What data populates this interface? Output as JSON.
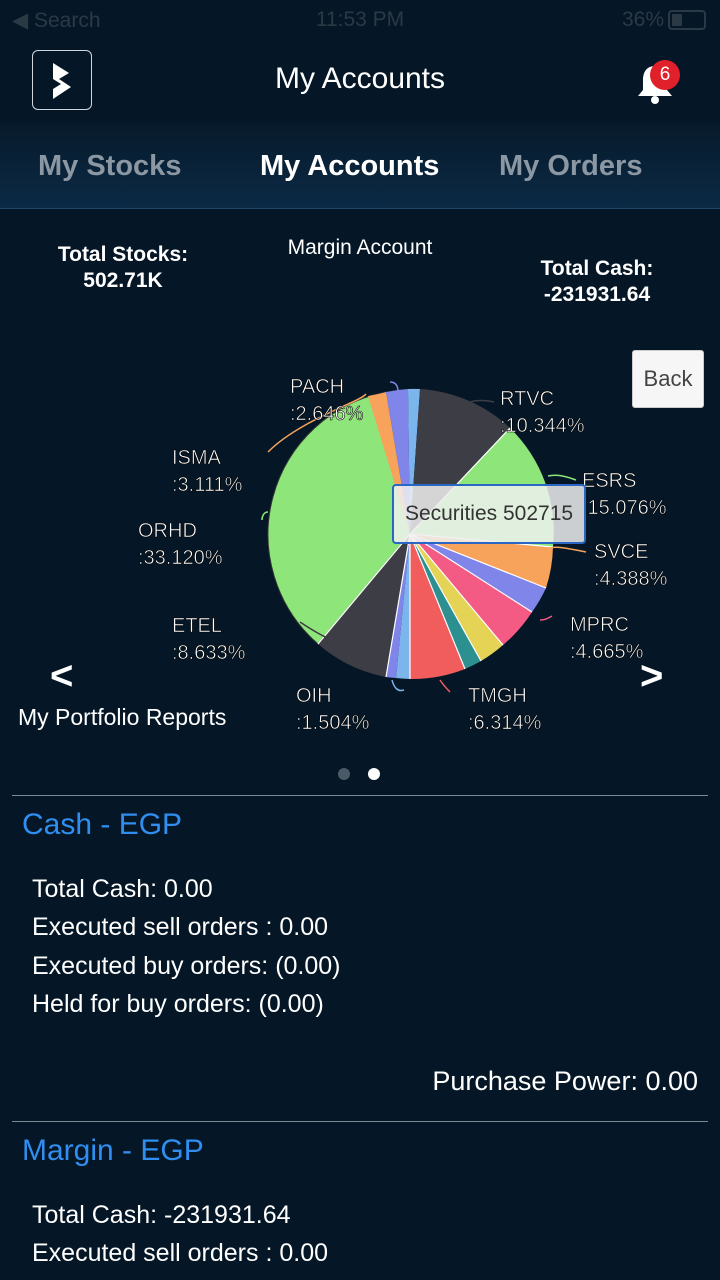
{
  "status_bar": {
    "back_label": "◀ Search",
    "time": "11:53 PM",
    "battery": "36%"
  },
  "header": {
    "title": "My Accounts",
    "notification_count": "6"
  },
  "tabs": [
    {
      "label": "My Stocks",
      "active": false
    },
    {
      "label": "My Accounts",
      "active": true
    },
    {
      "label": "My Orders",
      "active": false
    }
  ],
  "summary": {
    "total_stocks_label": "Total Stocks:",
    "total_stocks_value": "502.71K",
    "account_type": "Margin Account",
    "total_cash_label": "Total Cash:",
    "total_cash_value": "-231931.64"
  },
  "back_button": "Back",
  "tooltip": "Securities 502715",
  "prev_arrow": "<",
  "next_arrow": ">",
  "portfolio_reports": "My Portfolio Reports",
  "pie_labels": [
    {
      "name": "PACH",
      "pct": ":2.646%"
    },
    {
      "name": "RTVC",
      "pct": ":10.344%"
    },
    {
      "name": "ESRS",
      "pct": ":15.076%"
    },
    {
      "name": "SVCE",
      "pct": ":4.388%"
    },
    {
      "name": "MPRC",
      "pct": ":4.665%"
    },
    {
      "name": "TMGH",
      "pct": ":6.314%"
    },
    {
      "name": "OIH",
      "pct": ":1.504%"
    },
    {
      "name": "ETEL",
      "pct": ":8.633%"
    },
    {
      "name": "ORHD",
      "pct": ":33.120%"
    },
    {
      "name": "ISMA",
      "pct": ":3.111%"
    }
  ],
  "pie_colors": {
    "green": "#8ee67a",
    "dark": "#3d3d45",
    "orange": "#f7a35c",
    "blue": "#8085e9",
    "light_blue": "#7cb5ec",
    "red": "#f15c5c",
    "teal": "#2b908f",
    "yellow": "#e4d354",
    "pink": "#f45b84"
  },
  "cash_section": {
    "title": "Cash - EGP",
    "lines": [
      "Total Cash: 0.00",
      "Executed sell orders :  0.00",
      "Executed buy orders: (0.00)",
      "Held for buy orders: (0.00)"
    ],
    "purchase_power": "Purchase Power: 0.00"
  },
  "margin_section": {
    "title": "Margin - EGP",
    "lines": [
      "Total Cash: -231931.64",
      "Executed sell orders :  0.00"
    ]
  }
}
